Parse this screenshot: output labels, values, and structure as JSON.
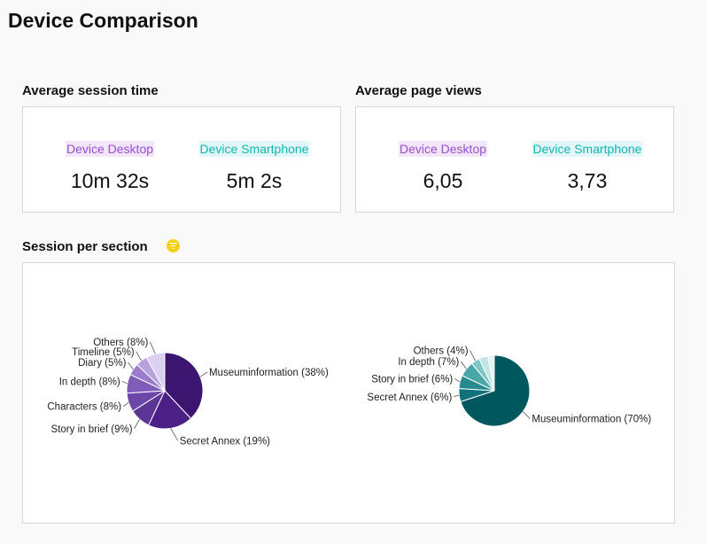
{
  "page_title": "Device Comparison",
  "session_time": {
    "title": "Average session time",
    "desktop_label": "Device Desktop",
    "desktop_value": "10m 32s",
    "phone_label": "Device Smartphone",
    "phone_value": "5m 2s"
  },
  "page_views": {
    "title": "Average page views",
    "desktop_label": "Device Desktop",
    "desktop_value": "6,05",
    "phone_label": "Device Smartphone",
    "phone_value": "3,73"
  },
  "section_chart": {
    "title": "Session per section",
    "info_icon": "filter-icon"
  },
  "colors": {
    "desktop_label": "#9b4fd1",
    "phone_label": "#12b5b4",
    "info_icon": "#f5cf14"
  },
  "chart_data": [
    {
      "type": "pie",
      "series_device": "Device Desktop",
      "slices": [
        {
          "label": "Museuminformation (38%)",
          "value": 38,
          "color": "#3b1570"
        },
        {
          "label": "Secret Annex (19%)",
          "value": 19,
          "color": "#4a2087"
        },
        {
          "label": "Story in brief (9%)",
          "value": 9,
          "color": "#5c3596"
        },
        {
          "label": "Characters (8%)",
          "value": 8,
          "color": "#6b47a8"
        },
        {
          "label": "In depth (8%)",
          "value": 8,
          "color": "#7f5db8"
        },
        {
          "label": "Diary (5%)",
          "value": 5,
          "color": "#9a7ccb"
        },
        {
          "label": "Timeline (5%)",
          "value": 5,
          "color": "#b7a1dc"
        },
        {
          "label": "Others (8%)",
          "value": 8,
          "color": "#dcd0f0"
        }
      ]
    },
    {
      "type": "pie",
      "series_device": "Device Smartphone",
      "slices": [
        {
          "label": "Museuminformation (70%)",
          "value": 70,
          "color": "#00585f"
        },
        {
          "label": "Secret Annex (6%)",
          "value": 6,
          "color": "#0f7278"
        },
        {
          "label": "Story in brief (6%)",
          "value": 6,
          "color": "#268a8e"
        },
        {
          "label": "In depth (7%)",
          "value": 7,
          "color": "#4ba6a8"
        },
        {
          "label": "Others (4%)",
          "value": 4,
          "color": "#7ec7c6"
        },
        {
          "label": "",
          "value": 4,
          "color": "#bfe4e2"
        },
        {
          "label": "",
          "value": 3,
          "color": "#e3f4f3"
        }
      ]
    }
  ]
}
